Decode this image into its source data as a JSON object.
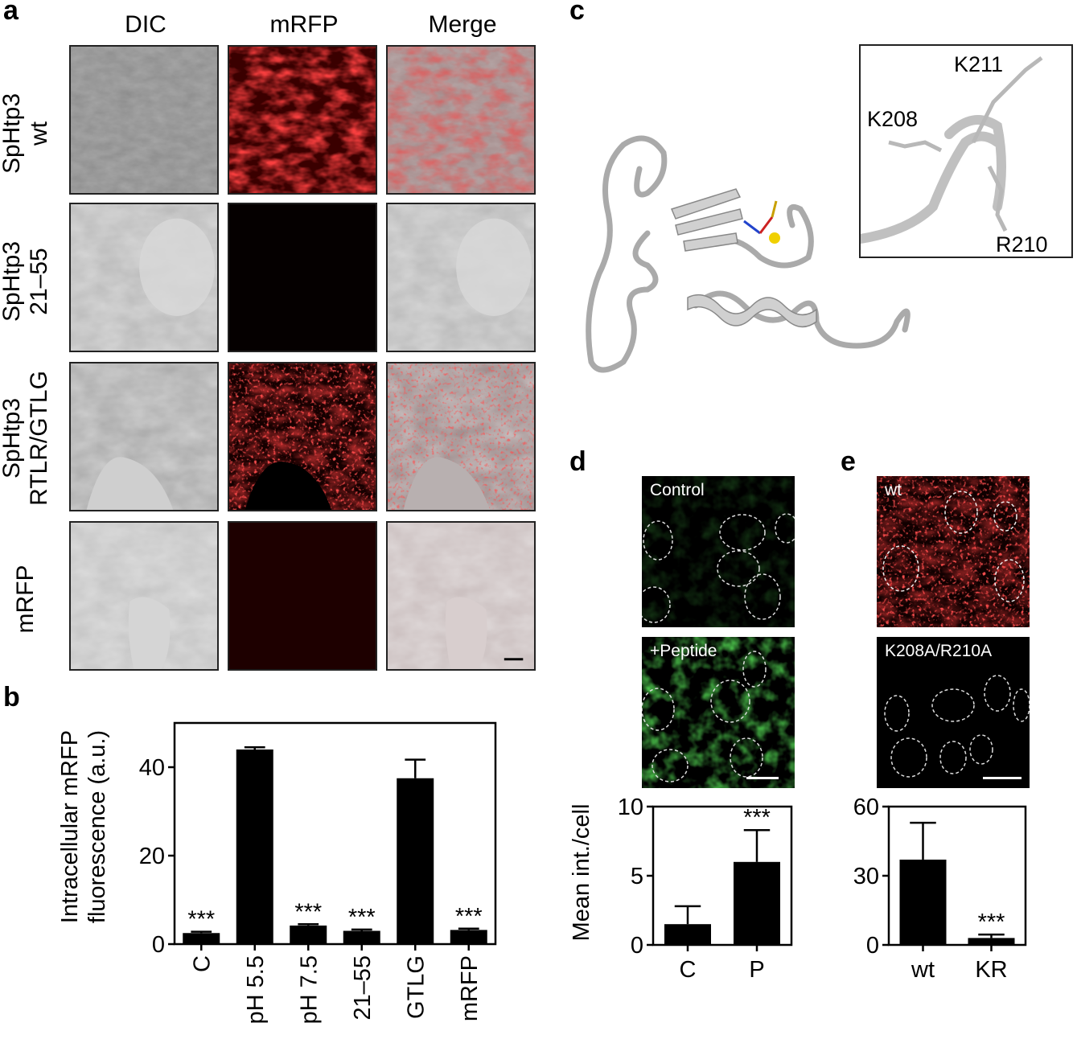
{
  "panel_a": {
    "letter": "a",
    "columns": [
      "DIC",
      "mRFP",
      "Merge"
    ],
    "rows": [
      {
        "line1": "SpHtp3",
        "line2": "wt"
      },
      {
        "line1": "SpHtp3",
        "line2": "21–55"
      },
      {
        "line1": "SpHtp3",
        "line2": "RTLR/GTLG"
      },
      {
        "line1": "mRFP",
        "line2": ""
      }
    ]
  },
  "panel_b": {
    "letter": "b"
  },
  "panel_c": {
    "letter": "c",
    "residues": [
      "K211",
      "K208",
      "R210"
    ]
  },
  "panel_d": {
    "letter": "d",
    "image_labels": [
      "Control",
      "+Peptide"
    ]
  },
  "panel_e": {
    "letter": "e",
    "image_labels": [
      "wt",
      "K208A/R210A"
    ]
  },
  "colors": {
    "bar": "#000000",
    "mrfp": "#e01010",
    "gfp": "#1fd01f",
    "dic": "#9a9a9a"
  },
  "chart_data": [
    {
      "id": "b",
      "type": "bar",
      "ylabel": "Intracellular mRFP fluorescence (a.u.)",
      "ylabel_lines": [
        "Intracellular mRFP",
        "fluorescence (a.u.)"
      ],
      "categories": [
        "C",
        "pH 5.5",
        "pH 7.5",
        "21–55",
        "GTLG",
        "mRFP"
      ],
      "values": [
        2.5,
        44,
        4.2,
        3,
        37.5,
        3.2
      ],
      "errors": [
        0.3,
        0.5,
        0.3,
        0.3,
        4.2,
        0.3
      ],
      "annotations": [
        "***",
        "",
        "***",
        "***",
        "",
        "***"
      ],
      "ylim": [
        0,
        50
      ],
      "yticks": [
        0,
        20,
        40
      ]
    },
    {
      "id": "d",
      "type": "bar",
      "ylabel": "Mean int./cell",
      "categories": [
        "C",
        "P"
      ],
      "values": [
        1.5,
        6
      ],
      "errors": [
        1.3,
        2.3
      ],
      "annotations": [
        "",
        "***"
      ],
      "ylim": [
        0,
        10
      ],
      "yticks": [
        0,
        5,
        10
      ]
    },
    {
      "id": "e",
      "type": "bar",
      "ylabel": "",
      "categories": [
        "wt",
        "KR"
      ],
      "values": [
        37,
        3
      ],
      "errors": [
        16,
        1.5
      ],
      "annotations": [
        "",
        "***"
      ],
      "ylim": [
        0,
        60
      ],
      "yticks": [
        0,
        30,
        60
      ]
    }
  ]
}
